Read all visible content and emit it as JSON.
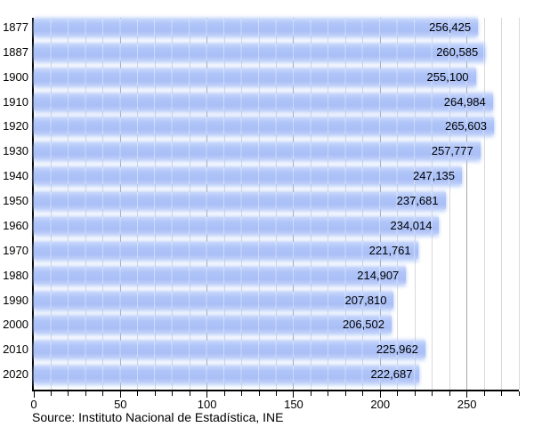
{
  "chart_data": {
    "type": "bar",
    "orientation": "horizontal",
    "title": "",
    "xlabel": "",
    "ylabel": "",
    "categories": [
      "1877",
      "1887",
      "1900",
      "1910",
      "1920",
      "1930",
      "1940",
      "1950",
      "1960",
      "1970",
      "1980",
      "1990",
      "2000",
      "2010",
      "2020"
    ],
    "values": [
      256425,
      260585,
      255100,
      264984,
      265603,
      257777,
      247135,
      237681,
      234014,
      221761,
      214907,
      207810,
      206502,
      225962,
      222687
    ],
    "value_labels": [
      "256,425",
      "260,585",
      "255,100",
      "264,984",
      "265,603",
      "257,777",
      "247,135",
      "237,681",
      "234,014",
      "221,761",
      "214,907",
      "207,810",
      "206,502",
      "225,962",
      "222,687"
    ],
    "x_axis_unit": "thousands",
    "xlim": [
      0,
      280
    ],
    "x_major_step": 50,
    "x_minor_step": 10,
    "x_tick_labels": [
      "0",
      "50",
      "100",
      "150",
      "200",
      "250"
    ],
    "grid": "vertical-minor-and-major",
    "legend": "none",
    "source": "Source: Instituto Nacional de Estadística, INE",
    "colors": {
      "bar": "#aec3f7",
      "bar_highlight": "#c9d7fb",
      "grid_minor": "#d9d9d9",
      "grid_major": "#a8a8a8",
      "axis": "#000000",
      "text": "#000000",
      "background": "#ffffff"
    }
  }
}
